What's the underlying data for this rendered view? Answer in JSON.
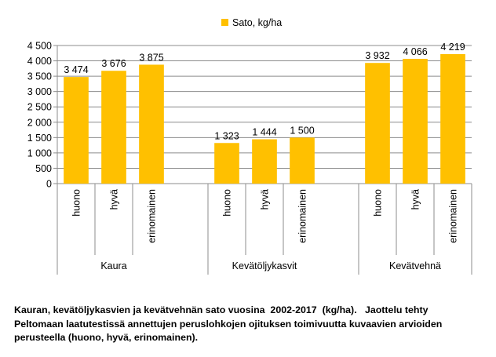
{
  "chart_data": {
    "type": "bar",
    "legend": "top-center",
    "series": [
      {
        "name": "Sato, kg/ha",
        "color": "#FFC000",
        "values": [
          3474,
          3676,
          3875,
          null,
          1323,
          1444,
          1500,
          null,
          3932,
          4066,
          4219
        ]
      }
    ],
    "categories": [
      "huono",
      "hyvä",
      "erinomainen",
      "",
      "huono",
      "hyvä",
      "erinomainen",
      "",
      "huono",
      "hyvä",
      "erinomainen"
    ],
    "data_labels": [
      "3 474",
      "3 676",
      "3 875",
      "",
      "1 323",
      "1 444",
      "1 500",
      "",
      "3 932",
      "4 066",
      "4 219"
    ],
    "groups": [
      {
        "label": "Kaura",
        "start": 0,
        "end": 3
      },
      {
        "label": "Kevätöljykasvit",
        "start": 4,
        "end": 7
      },
      {
        "label": "Kevätvehnä",
        "start": 8,
        "end": 10
      }
    ],
    "ylim": [
      0,
      4500
    ],
    "yticks": [
      0,
      500,
      1000,
      1500,
      2000,
      2500,
      3000,
      3500,
      4000,
      4500
    ],
    "ytick_labels": [
      "0",
      "500",
      "1 000",
      "1 500",
      "2 000",
      "2 500",
      "3 000",
      "3 500",
      "4 000",
      "4 500"
    ],
    "grid": true,
    "xlabel": "",
    "ylabel": ""
  },
  "caption": {
    "line1": "Kauran, kevätöljykasvien ja kevätvehnän sato vuosina  2002-2017  (kg/ha).   Jaottelu tehty",
    "line2": "Peltomaan laatutestissä annettujen peruslohkojen ojituksen toimivuutta kuvaavien arvioiden",
    "line3": "perusteella (huono, hyvä, erinomainen)."
  }
}
